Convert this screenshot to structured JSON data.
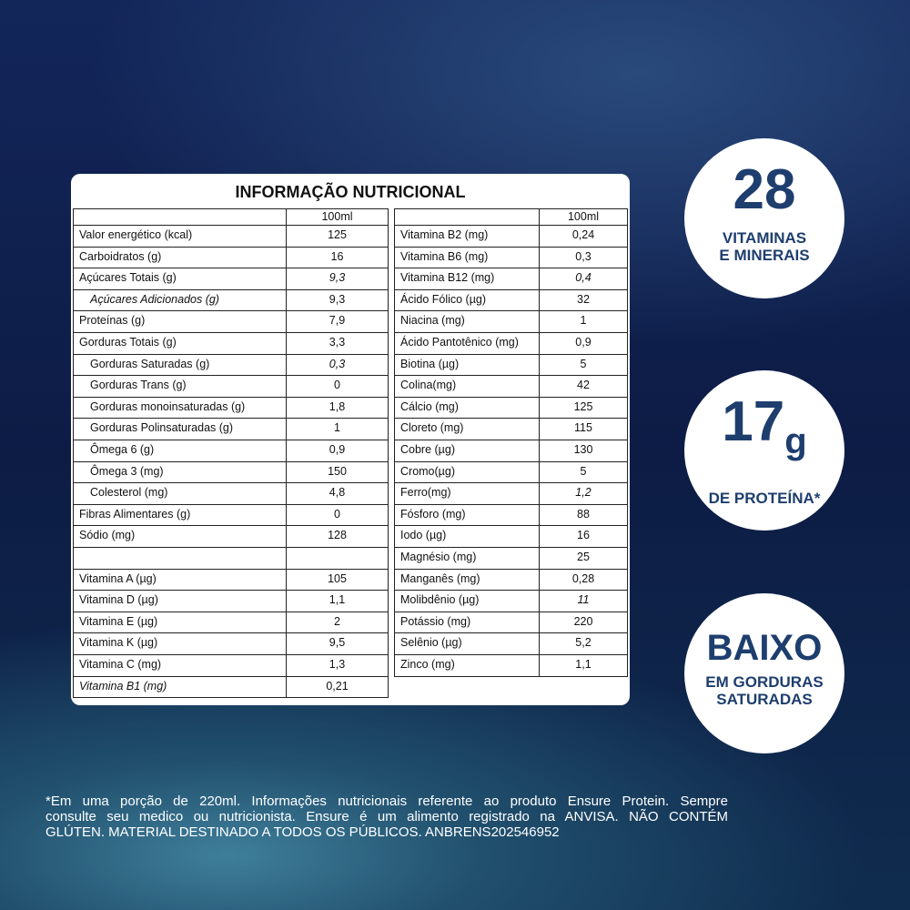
{
  "table": {
    "title": "INFORMAÇÃO NUTRICIONAL",
    "left": {
      "header": "100ml",
      "sections": [
        [
          {
            "label": "Valor energético (kcal)",
            "value": "125"
          },
          {
            "label": "Carboidratos (g)",
            "value": "16"
          },
          {
            "label": "Açúcares Totais (g)",
            "value": "9,3",
            "italic": "value"
          },
          {
            "label": "Açúcares Adicionados (g)",
            "value": "9,3",
            "indent": true,
            "italic": "label"
          },
          {
            "label": "Proteínas (g)",
            "value": "7,9"
          },
          {
            "label": "Gorduras Totais (g)",
            "value": "3,3"
          },
          {
            "label": "Gorduras Saturadas (g)",
            "value": "0,3",
            "indent": true,
            "italic": "value"
          },
          {
            "label": "Gorduras Trans (g)",
            "value": "0",
            "indent": true
          },
          {
            "label": "Gorduras monoinsaturadas (g)",
            "value": "1,8",
            "indent": true
          },
          {
            "label": "Gorduras Polinsaturadas (g)",
            "value": "1",
            "indent": true
          },
          {
            "label": "Ômega 6 (g)",
            "value": "0,9",
            "indent": true
          },
          {
            "label": "Ômega 3 (mg)",
            "value": "150",
            "indent": true
          },
          {
            "label": "Colesterol (mg)",
            "value": "4,8",
            "indent": true
          },
          {
            "label": "Fibras Alimentares (g)",
            "value": "0"
          },
          {
            "label": "Sódio (mg)",
            "value": "128"
          }
        ],
        [
          {
            "label": "Vitamina A (µg)",
            "value": "105"
          },
          {
            "label": "Vitamina D (µg)",
            "value": "1,1"
          },
          {
            "label": "Vitamina E (µg)",
            "value": "2"
          },
          {
            "label": "Vitamina K (µg)",
            "value": "9,5"
          },
          {
            "label": "Vitamina C (mg)",
            "value": "1,3"
          },
          {
            "label": "Vitamina B1 (mg)",
            "value": "0,21",
            "italic": "label"
          }
        ]
      ]
    },
    "right": {
      "header": "100ml",
      "sections": [
        [
          {
            "label": "Vitamina B2 (mg)",
            "value": "0,24"
          },
          {
            "label": "Vitamina B6 (mg)",
            "value": "0,3"
          },
          {
            "label": "Vitamina B12 (mg)",
            "value": "0,4",
            "italic": "value"
          },
          {
            "label": "Ácido Fólico (µg)",
            "value": "32"
          },
          {
            "label": "Niacina (mg)",
            "value": "1"
          },
          {
            "label": "Ácido Pantotênico (mg)",
            "value": "0,9"
          },
          {
            "label": "Biotina (µg)",
            "value": "5"
          },
          {
            "label": "Colina(mg)",
            "value": "42"
          },
          {
            "label": "Cálcio (mg)",
            "value": "125"
          },
          {
            "label": "Cloreto (mg)",
            "value": "115"
          },
          {
            "label": "Cobre (µg)",
            "value": "130"
          },
          {
            "label": "Cromo(µg)",
            "value": "5"
          },
          {
            "label": "Ferro(mg)",
            "value": "1,2",
            "italic": "value"
          },
          {
            "label": "Fósforo (mg)",
            "value": "88"
          },
          {
            "label": "Iodo (µg)",
            "value": "16"
          },
          {
            "label": "Magnésio (mg)",
            "value": "25"
          },
          {
            "label": "Manganês (mg)",
            "value": "0,28"
          },
          {
            "label": "Molibdênio (µg)",
            "value": "11",
            "italic": "value"
          },
          {
            "label": "Potássio (mg)",
            "value": "220"
          },
          {
            "label": "Selênio (µg)",
            "value": "5,2"
          },
          {
            "label": "Zinco (mg)",
            "value": "1,1"
          }
        ]
      ]
    }
  },
  "badges": [
    {
      "big": "28",
      "lines": [
        "VITAMINAS",
        "E MINERAIS"
      ]
    },
    {
      "big": "17",
      "unit": "g",
      "lines": [
        "DE PROTEÍNA*"
      ]
    },
    {
      "big": "BAIXO",
      "lines": [
        "EM GORDURAS",
        "SATURADAS"
      ]
    }
  ],
  "footnote": [
    "*Em uma porção de 220ml. Informações nutricionais referente ao produto Ensure Protein. Sempre",
    "consulte seu medico ou nutricionista. Ensure é um alimento registrado na ANVISA. NÃO CONTÉM",
    "GLÚTEN. MATERIAL DESTINADO A TODOS OS PÚBLICOS. ANBRENS202546952"
  ]
}
